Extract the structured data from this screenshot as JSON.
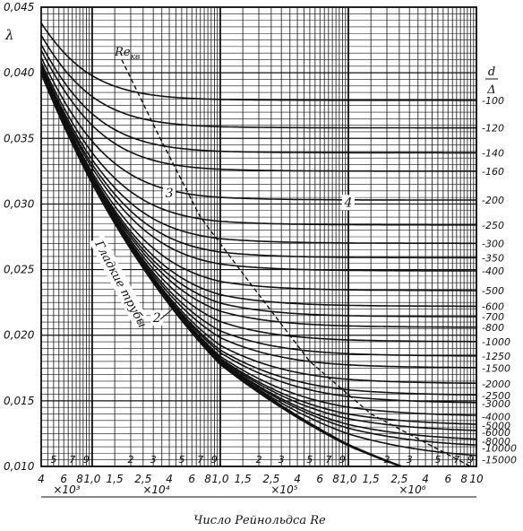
{
  "chart_data": {
    "type": "line",
    "title": "",
    "ylabel": "λ",
    "xlabel": "Число Рейнольдса Re",
    "x_scale": "log",
    "xlim": [
      4000,
      10000000
    ],
    "ylim": [
      0.01,
      0.045
    ],
    "grid": true,
    "y_ticks": [
      "0,010",
      "0,015",
      "0,020",
      "0,025",
      "0,030",
      "0,035",
      "0,040",
      "0,045"
    ],
    "y_tick_values": [
      0.01,
      0.015,
      0.02,
      0.025,
      0.03,
      0.035,
      0.04,
      0.045
    ],
    "minor_tick_labels": [
      {
        "text": "5",
        "re": 5000
      },
      {
        "text": "7",
        "re": 7000
      },
      {
        "text": "9",
        "re": 9000
      },
      {
        "text": "2",
        "re": 20000
      },
      {
        "text": "3",
        "re": 30000
      },
      {
        "text": "5",
        "re": 50000
      },
      {
        "text": "7",
        "re": 70000
      },
      {
        "text": "9",
        "re": 90000
      },
      {
        "text": "2",
        "re": 200000
      },
      {
        "text": "3",
        "re": 300000
      },
      {
        "text": "5",
        "re": 500000
      },
      {
        "text": "7",
        "re": 700000
      },
      {
        "text": "9",
        "re": 900000
      },
      {
        "text": "2",
        "re": 2000000
      },
      {
        "text": "3",
        "re": 3000000
      },
      {
        "text": "5",
        "re": 5000000
      },
      {
        "text": "7",
        "re": 7000000
      },
      {
        "text": "9",
        "re": 9000000
      }
    ],
    "major_tick_labels": [
      {
        "text": "4",
        "re": 4000
      },
      {
        "text": "6",
        "re": 6000
      },
      {
        "text": "8",
        "re": 8000
      },
      {
        "text": "1,0",
        "re": 10000
      },
      {
        "text": "1,5",
        "re": 15000
      },
      {
        "text": "2,5",
        "re": 25000
      },
      {
        "text": "4",
        "re": 40000
      },
      {
        "text": "6",
        "re": 60000
      },
      {
        "text": "8",
        "re": 80000
      },
      {
        "text": "1,0",
        "re": 100000
      },
      {
        "text": "1,5",
        "re": 150000
      },
      {
        "text": "2,5",
        "re": 250000
      },
      {
        "text": "4",
        "re": 400000
      },
      {
        "text": "6",
        "re": 600000
      },
      {
        "text": "8",
        "re": 800000
      },
      {
        "text": "1,0",
        "re": 1000000
      },
      {
        "text": "1,5",
        "re": 1500000
      },
      {
        "text": "2,5",
        "re": 2500000
      },
      {
        "text": "4",
        "re": 4000000
      },
      {
        "text": "6",
        "re": 6000000
      },
      {
        "text": "8",
        "re": 8000000
      },
      {
        "text": "10",
        "re": 10000000
      }
    ],
    "multipliers": [
      {
        "text": "×10³",
        "re_from": 4000,
        "re_to": 10000
      },
      {
        "text": "×10⁴",
        "re_from": 10000,
        "re_to": 100000
      },
      {
        "text": "×10⁵",
        "re_from": 100000,
        "re_to": 1000000
      },
      {
        "text": "×10⁶",
        "re_from": 1000000,
        "re_to": 10000000
      }
    ],
    "right_axis_title_top": "d",
    "right_axis_title_bottom": "Δ",
    "series": [
      {
        "name": "100",
        "lambda": 0.0379
      },
      {
        "name": "120",
        "lambda": 0.0358
      },
      {
        "name": "140",
        "lambda": 0.0339
      },
      {
        "name": "160",
        "lambda": 0.0325
      },
      {
        "name": "200",
        "lambda": 0.0303
      },
      {
        "name": "250",
        "lambda": 0.0284
      },
      {
        "name": "300",
        "lambda": 0.027
      },
      {
        "name": "350",
        "lambda": 0.0259
      },
      {
        "name": "400",
        "lambda": 0.0249
      },
      {
        "name": "500",
        "lambda": 0.0234
      },
      {
        "name": "600",
        "lambda": 0.0222
      },
      {
        "name": "700",
        "lambda": 0.0214
      },
      {
        "name": "800",
        "lambda": 0.0206
      },
      {
        "name": "1000",
        "lambda": 0.0195
      },
      {
        "name": "1250",
        "lambda": 0.0184
      },
      {
        "name": "1500",
        "lambda": 0.0175
      },
      {
        "name": "2000",
        "lambda": 0.0163
      },
      {
        "name": "2500",
        "lambda": 0.0154
      },
      {
        "name": "3000",
        "lambda": 0.0148
      },
      {
        "name": "4000",
        "lambda": 0.0138
      },
      {
        "name": "5000",
        "lambda": 0.0131
      },
      {
        "name": "6000",
        "lambda": 0.0126
      },
      {
        "name": "8000",
        "lambda": 0.0119
      },
      {
        "name": "10000",
        "lambda": 0.0114
      },
      {
        "name": "15000",
        "lambda": 0.0105
      }
    ],
    "smooth_pipe_curve": [
      {
        "re": 4000,
        "lambda": 0.04
      },
      {
        "re": 10000,
        "lambda": 0.0316
      },
      {
        "re": 100000,
        "lambda": 0.0178
      },
      {
        "re": 1000000,
        "lambda": 0.0116
      },
      {
        "re": 10000000,
        "lambda": 0.0081
      }
    ],
    "recr_curve": [
      {
        "re": 17000,
        "lambda": 0.041
      },
      {
        "re": 34000,
        "lambda": 0.035
      },
      {
        "re": 70000,
        "lambda": 0.029
      },
      {
        "re": 170000,
        "lambda": 0.024
      },
      {
        "re": 500000,
        "lambda": 0.018
      },
      {
        "re": 1500000,
        "lambda": 0.014
      },
      {
        "re": 9000000,
        "lambda": 0.01
      }
    ],
    "annotations": [
      {
        "text": "Re",
        "sub": "кв",
        "re": 15000,
        "lambda": 0.0413
      },
      {
        "text": "Гладкие трубы",
        "re": 10500,
        "lambda": 0.027
      },
      {
        "text": "2",
        "re": 32000,
        "lambda": 0.021
      },
      {
        "text": "3",
        "re": 40000,
        "lambda": 0.0305
      },
      {
        "text": "4",
        "re": 1000000,
        "lambda": 0.0298
      }
    ]
  }
}
